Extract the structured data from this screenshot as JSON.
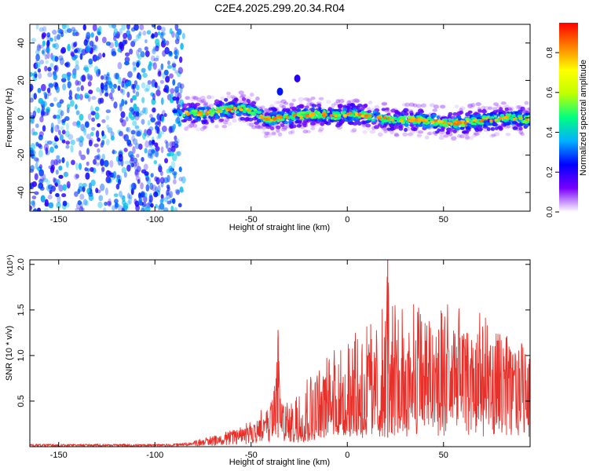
{
  "figure_title": "C2E4.2025.299.20.34.R04",
  "chart_data": [
    {
      "type": "heatmap",
      "xlabel": "Height of straight line (km)",
      "ylabel": "Frequency (Hz)",
      "xlim": [
        -165,
        95
      ],
      "ylim": [
        -50,
        50
      ],
      "x_ticks": [
        -150,
        -100,
        -50,
        0,
        50
      ],
      "y_ticks": [
        -40,
        -20,
        0,
        20,
        40
      ],
      "x_tick_labels": [
        "-150",
        "-100",
        "-50",
        "0",
        "50"
      ],
      "y_tick_labels": [
        "-40",
        "-20",
        "0",
        "20",
        "40"
      ],
      "colorbar": {
        "label": "Normalized spectral amplitude",
        "range": [
          0.0,
          0.95
        ],
        "ticks": [
          0.0,
          0.2,
          0.4,
          0.6,
          0.8
        ],
        "tick_labels": [
          "0.0",
          "0.2",
          "0.4",
          "0.6",
          "0.8"
        ],
        "colormap": [
          "#ffffff",
          "#7a00ff",
          "#0000ff",
          "#00b0ff",
          "#00ff80",
          "#c0ff00",
          "#ffff00",
          "#ff8000",
          "#ff0000"
        ]
      },
      "noise_region_x": [
        -165,
        -85
      ],
      "ridge": {
        "x": [
          -85,
          -75,
          -65,
          -55,
          -48,
          -42,
          -35,
          -25,
          -15,
          -5,
          5,
          15,
          25,
          35,
          45,
          55,
          65,
          75,
          85,
          95
        ],
        "y": [
          3,
          2,
          4,
          5,
          3,
          -1,
          0,
          1,
          2,
          1,
          2,
          0,
          -1,
          -1,
          -2,
          -3,
          -2,
          -1,
          0,
          -1
        ],
        "peak_amplitude": 0.95
      },
      "outliers": [
        {
          "x": -35,
          "y": 14,
          "amplitude": 0.25
        },
        {
          "x": -26,
          "y": 21,
          "amplitude": 0.2
        }
      ]
    },
    {
      "type": "line",
      "xlabel": "Height of straight line (km)",
      "ylabel": "SNR (10 * v/v)",
      "y_scale_note": "(x10⁴)",
      "xlim": [
        -165,
        95
      ],
      "ylim": [
        0.0,
        2.05
      ],
      "x_ticks": [
        -150,
        -100,
        -50,
        0,
        50
      ],
      "y_ticks": [
        0.5,
        1.0,
        1.5,
        2.0
      ],
      "x_tick_labels": [
        "-150",
        "-100",
        "-50",
        "0",
        "50"
      ],
      "y_tick_labels": [
        "0.5",
        "1.0",
        "1.5",
        "2.0"
      ],
      "series": [
        {
          "name": "SNR",
          "color": "#e8302a",
          "x": [
            -165,
            -150,
            -130,
            -110,
            -95,
            -85,
            -80,
            -75,
            -70,
            -65,
            -60,
            -55,
            -50,
            -45,
            -40,
            -37,
            -36,
            -35,
            -33,
            -30,
            -25,
            -20,
            -15,
            -10,
            -5,
            0,
            5,
            10,
            15,
            20,
            21,
            22,
            25,
            30,
            35,
            40,
            45,
            50,
            55,
            60,
            65,
            70,
            75,
            80,
            85,
            90,
            95
          ],
          "values": [
            0.02,
            0.02,
            0.02,
            0.02,
            0.02,
            0.03,
            0.04,
            0.06,
            0.08,
            0.1,
            0.13,
            0.16,
            0.2,
            0.22,
            0.3,
            0.5,
            1.25,
            0.4,
            0.3,
            0.25,
            0.3,
            0.35,
            0.45,
            0.48,
            0.5,
            0.55,
            0.55,
            0.6,
            0.62,
            0.65,
            2.0,
            0.7,
            0.7,
            0.72,
            0.75,
            0.75,
            0.78,
            0.75,
            0.75,
            0.78,
            0.8,
            0.72,
            0.75,
            0.72,
            0.75,
            0.72,
            0.7
          ],
          "noise_envelope_upper": [
            0.03,
            0.03,
            0.03,
            0.03,
            0.03,
            0.04,
            0.06,
            0.09,
            0.12,
            0.15,
            0.18,
            0.22,
            0.3,
            0.4,
            0.45,
            0.8,
            1.28,
            0.6,
            0.5,
            0.55,
            0.7,
            0.85,
            0.95,
            1.0,
            1.1,
            1.2,
            1.3,
            1.35,
            1.4,
            1.6,
            2.05,
            1.5,
            1.6,
            1.75,
            1.6,
            1.55,
            1.5,
            1.7,
            1.65,
            1.45,
            1.25,
            1.55,
            1.2,
            1.3,
            1.15,
            1.15,
            1.1
          ]
        }
      ]
    }
  ]
}
